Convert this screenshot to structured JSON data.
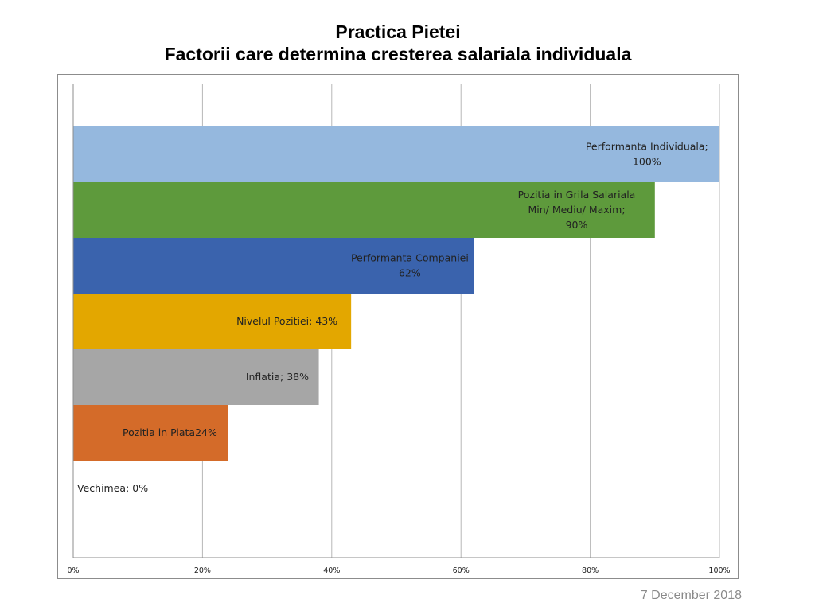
{
  "page": {
    "title_line1": "Practica Pietei",
    "title_line2": "Factorii care determina cresterea salariala individuala",
    "footer_date": "7 December 2018"
  },
  "chart_data": {
    "type": "bar",
    "orientation": "horizontal",
    "title": "Practica Pietei Factorii care determina cresterea salariala individuala",
    "xlabel": "",
    "ylabel": "",
    "xlim": [
      0,
      100
    ],
    "x_ticks": [
      "0%",
      "20%",
      "40%",
      "60%",
      "80%",
      "100%"
    ],
    "grid": "vertical",
    "categories": [
      "Performanta Individuala",
      "Pozitia in Grila Salariala Min/ Mediu/ Maxim",
      "Performanta Companiei",
      "Nivelul Pozitiei",
      "Inflatia",
      "Pozitia in Piata",
      "Vechimea"
    ],
    "values": [
      100,
      90,
      62,
      43,
      38,
      24,
      0
    ],
    "colors": [
      "#95b8de",
      "#5e9a3c",
      "#3a63ad",
      "#e3a700",
      "#a6a6a6",
      "#d46b29",
      "#ffffff"
    ],
    "data_labels": [
      [
        "Performanta Individuala;",
        "100%"
      ],
      [
        "Pozitia in Grila Salariala",
        "Min/ Mediu/ Maxim;",
        "90%"
      ],
      [
        "Performanta Companiei",
        "62%"
      ],
      [
        "Nivelul Pozitiei; 43%"
      ],
      [
        "Inflatia; 38%"
      ],
      [
        "Pozitia in Piata24%"
      ],
      [
        "Vechimea; 0%"
      ]
    ]
  }
}
